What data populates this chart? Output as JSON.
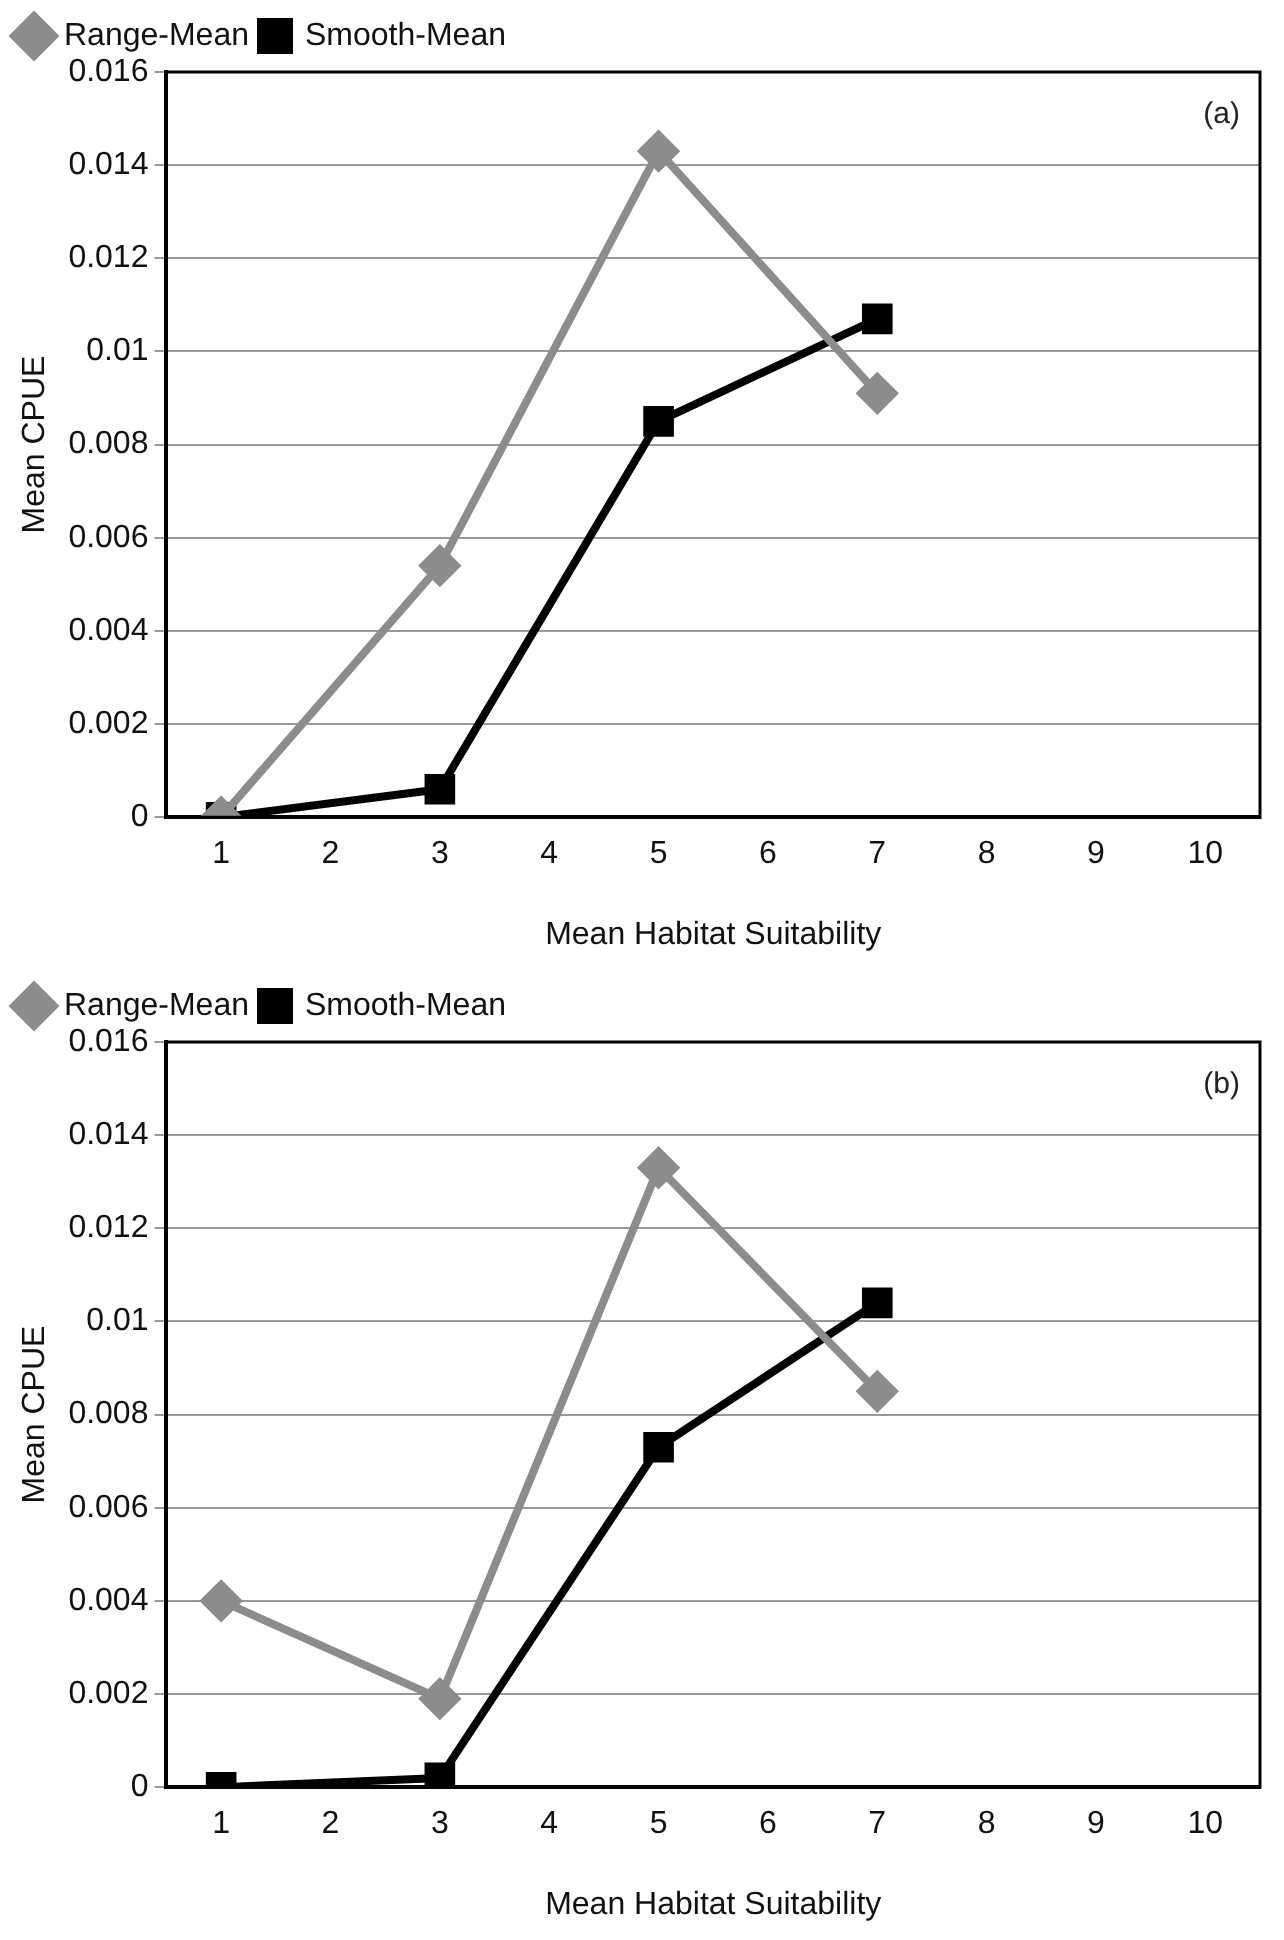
{
  "chart_data": [
    {
      "type": "line",
      "categories": [
        "1",
        "2",
        "3",
        "4",
        "5",
        "6",
        "7",
        "8",
        "9",
        "10"
      ],
      "xlabel": "Mean Habitat Suitability",
      "ylabel": "Mean CPUE",
      "ylim": [
        0,
        0.016
      ],
      "yticks": [
        0,
        0.002,
        0.004,
        0.006,
        0.008,
        {
          "value": 0.01,
          "label": "0.01"
        },
        0.012,
        0.014,
        0.016
      ],
      "grid": "y",
      "legend": "top left",
      "annotations": [
        "(a)"
      ],
      "series": [
        {
          "name": "Range-Mean",
          "color": "#8c8c8c",
          "marker": "diamond",
          "values": [
            0,
            null,
            0.0054,
            null,
            0.0143,
            null,
            0.0091,
            null,
            null,
            null
          ]
        },
        {
          "name": "Smooth-Mean",
          "color": "#000000",
          "marker": "square",
          "values": [
            0,
            null,
            0.0006,
            null,
            0.0085,
            null,
            0.0107,
            null,
            null,
            null
          ]
        }
      ]
    },
    {
      "type": "line",
      "categories": [
        "1",
        "2",
        "3",
        "4",
        "5",
        "6",
        "7",
        "8",
        "9",
        "10"
      ],
      "xlabel": "Mean Habitat Suitability",
      "ylabel": "Mean CPUE",
      "ylim": [
        0,
        0.016
      ],
      "yticks": [
        0,
        0.002,
        0.004,
        0.006,
        0.008,
        {
          "value": 0.01,
          "label": "0.01"
        },
        0.012,
        0.014,
        0.016
      ],
      "grid": "y",
      "legend": "top left",
      "annotations": [
        "(b)"
      ],
      "series": [
        {
          "name": "Range-Mean",
          "color": "#8c8c8c",
          "marker": "diamond",
          "values": [
            0.004,
            null,
            0.0019,
            null,
            0.0133,
            null,
            0.0085,
            null,
            null,
            null
          ]
        },
        {
          "name": "Smooth-Mean",
          "color": "#000000",
          "marker": "square",
          "values": [
            0,
            null,
            0.0002,
            null,
            0.0073,
            null,
            0.0104,
            null,
            null,
            null
          ]
        }
      ]
    }
  ]
}
